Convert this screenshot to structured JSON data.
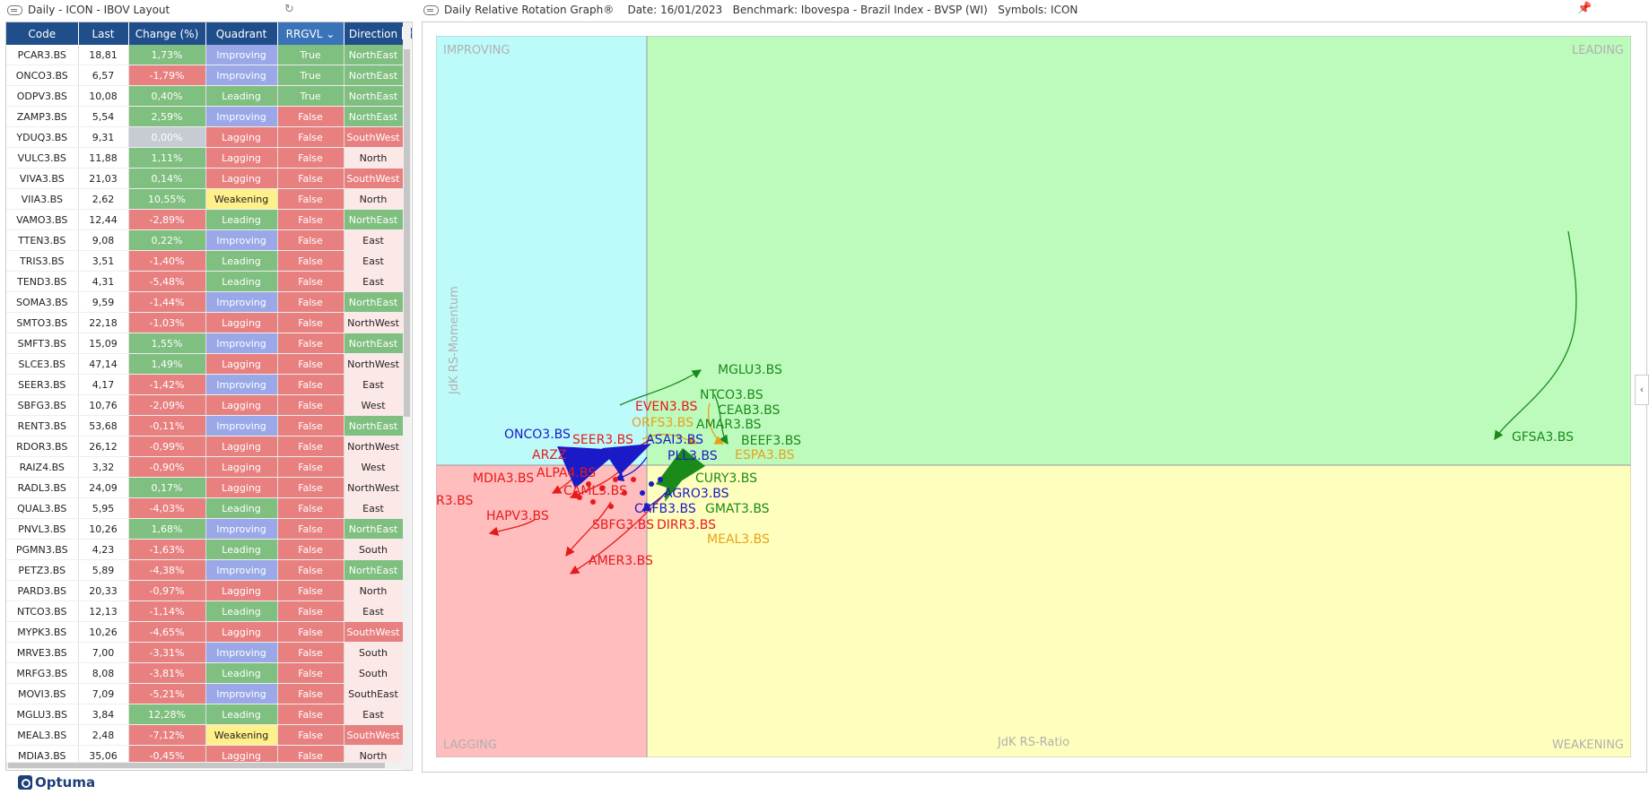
{
  "left_panel": {
    "title": "Daily - ICON - IBOV Layout"
  },
  "right_panel": {
    "title": "Daily Relative Rotation Graph®    Date: 16/01/2023   Benchmark: Ibovespa - Brazil Index - BVSP (WI)   Symbols: ICON"
  },
  "brand": {
    "name": "Optuma"
  },
  "colors": {
    "header": "#1f4e8a",
    "green": "#7fbf7f",
    "red": "#e88080",
    "gray": "#c7cbd3",
    "improving": "#9aa8e8",
    "leading": "#7fbf7f",
    "lagging": "#e88080",
    "weakening": "#fff08a",
    "pink_dir": "#fde8e8"
  },
  "table": {
    "columns": [
      "Code",
      "Last",
      "Change (%)",
      "Quadrant",
      "RRGVL",
      "Direction"
    ],
    "rows": [
      [
        "PCAR3.BS",
        "18,81",
        "1,73%",
        "Improving",
        "True",
        "NorthEast"
      ],
      [
        "ONCO3.BS",
        "6,57",
        "-1,79%",
        "Improving",
        "True",
        "NorthEast"
      ],
      [
        "ODPV3.BS",
        "10,08",
        "0,40%",
        "Leading",
        "True",
        "NorthEast"
      ],
      [
        "ZAMP3.BS",
        "5,54",
        "2,59%",
        "Improving",
        "False",
        "NorthEast"
      ],
      [
        "YDUQ3.BS",
        "9,31",
        "0,00%",
        "Lagging",
        "False",
        "SouthWest"
      ],
      [
        "VULC3.BS",
        "11,88",
        "1,11%",
        "Lagging",
        "False",
        "North"
      ],
      [
        "VIVA3.BS",
        "21,03",
        "0,14%",
        "Lagging",
        "False",
        "SouthWest"
      ],
      [
        "VIIA3.BS",
        "2,62",
        "10,55%",
        "Weakening",
        "False",
        "North"
      ],
      [
        "VAMO3.BS",
        "12,44",
        "-2,89%",
        "Leading",
        "False",
        "NorthEast"
      ],
      [
        "TTEN3.BS",
        "9,08",
        "0,22%",
        "Improving",
        "False",
        "East"
      ],
      [
        "TRIS3.BS",
        "3,51",
        "-1,40%",
        "Leading",
        "False",
        "East"
      ],
      [
        "TEND3.BS",
        "4,31",
        "-5,48%",
        "Leading",
        "False",
        "East"
      ],
      [
        "SOMA3.BS",
        "9,59",
        "-1,44%",
        "Improving",
        "False",
        "NorthEast"
      ],
      [
        "SMTO3.BS",
        "22,18",
        "-1,03%",
        "Lagging",
        "False",
        "NorthWest"
      ],
      [
        "SMFT3.BS",
        "15,09",
        "1,55%",
        "Improving",
        "False",
        "NorthEast"
      ],
      [
        "SLCE3.BS",
        "47,14",
        "1,49%",
        "Lagging",
        "False",
        "NorthWest"
      ],
      [
        "SEER3.BS",
        "4,17",
        "-1,42%",
        "Improving",
        "False",
        "East"
      ],
      [
        "SBFG3.BS",
        "10,76",
        "-2,09%",
        "Lagging",
        "False",
        "West"
      ],
      [
        "RENT3.BS",
        "53,68",
        "-0,11%",
        "Improving",
        "False",
        "NorthEast"
      ],
      [
        "RDOR3.BS",
        "26,12",
        "-0,99%",
        "Lagging",
        "False",
        "NorthWest"
      ],
      [
        "RAIZ4.BS",
        "3,32",
        "-0,90%",
        "Lagging",
        "False",
        "West"
      ],
      [
        "RADL3.BS",
        "24,09",
        "0,17%",
        "Lagging",
        "False",
        "NorthWest"
      ],
      [
        "QUAL3.BS",
        "5,95",
        "-4,03%",
        "Leading",
        "False",
        "East"
      ],
      [
        "PNVL3.BS",
        "10,26",
        "1,68%",
        "Improving",
        "False",
        "NorthEast"
      ],
      [
        "PGMN3.BS",
        "4,23",
        "-1,63%",
        "Leading",
        "False",
        "South"
      ],
      [
        "PETZ3.BS",
        "5,89",
        "-4,38%",
        "Improving",
        "False",
        "NorthEast"
      ],
      [
        "PARD3.BS",
        "20,33",
        "-0,97%",
        "Lagging",
        "False",
        "North"
      ],
      [
        "NTCO3.BS",
        "12,13",
        "-1,14%",
        "Leading",
        "False",
        "East"
      ],
      [
        "MYPK3.BS",
        "10,26",
        "-4,65%",
        "Lagging",
        "False",
        "SouthWest"
      ],
      [
        "MRVE3.BS",
        "7,00",
        "-3,31%",
        "Improving",
        "False",
        "South"
      ],
      [
        "MRFG3.BS",
        "8,08",
        "-3,81%",
        "Leading",
        "False",
        "South"
      ],
      [
        "MOVI3.BS",
        "7,09",
        "-5,21%",
        "Improving",
        "False",
        "SouthEast"
      ],
      [
        "MGLU3.BS",
        "3,84",
        "12,28%",
        "Leading",
        "False",
        "East"
      ],
      [
        "MEAL3.BS",
        "2,48",
        "-7,12%",
        "Weakening",
        "False",
        "SouthWest"
      ],
      [
        "MDIA3.BS",
        "35,06",
        "-0,45%",
        "Lagging",
        "False",
        "North"
      ]
    ]
  },
  "rrg": {
    "quadrants": {
      "improving": "IMPROVING",
      "leading": "LEADING",
      "lagging": "LAGGING",
      "weakening": "WEAKENING"
    },
    "x_axis_label": "JdK RS-Ratio",
    "y_axis_label": "JdK RS-Momentum",
    "symbol_labels": [
      {
        "text": "MGLU3.BS",
        "color": "#2e8b2e"
      },
      {
        "text": "NTCO3.BS",
        "color": "#2e8b2e"
      },
      {
        "text": "CEAB3.BS",
        "color": "#2e8b2e"
      },
      {
        "text": "EVEN3.BS",
        "color": "#e8191b"
      },
      {
        "text": "AMAR3.BS",
        "color": "#2e8b2e"
      },
      {
        "text": "BEEF3.BS",
        "color": "#2e8b2e"
      },
      {
        "text": "ONCO3.BS",
        "color": "#1a1ac8"
      },
      {
        "text": "ESPA3.BS",
        "color": "#e8a019"
      },
      {
        "text": "GFSA3.BS",
        "color": "#2e8b2e"
      },
      {
        "text": "CURY3.BS",
        "color": "#2e8b2e"
      },
      {
        "text": "MDIA3.BS",
        "color": "#e8191b"
      },
      {
        "text": "AGRO3.BS",
        "color": "#1a1ac8"
      },
      {
        "text": "GMAT3.BS",
        "color": "#2e8b2e"
      },
      {
        "text": "CRFB3.BS",
        "color": "#1a1ac8"
      },
      {
        "text": "HAPV3.BS",
        "color": "#e8191b"
      },
      {
        "text": "SBFG3.BS",
        "color": "#e8191b"
      },
      {
        "text": "DIRR3.BS",
        "color": "#e8191b"
      },
      {
        "text": "MEAL3.BS",
        "color": "#e8a019"
      },
      {
        "text": "AMER3.BS",
        "color": "#e8191b"
      },
      {
        "text": "R3.BS",
        "color": "#e8191b"
      },
      {
        "text": "SEER3.BS",
        "color": "#e8191b"
      },
      {
        "text": "ARZZ",
        "color": "#e8191b"
      },
      {
        "text": "ALPA4.BS",
        "color": "#e8191b"
      },
      {
        "text": "CAML3.BS",
        "color": "#e8191b"
      },
      {
        "text": "ASAI3.BS",
        "color": "#1a1ac8"
      },
      {
        "text": "ORFS3.BS",
        "color": "#e8a019"
      },
      {
        "text": "PLL3.BS",
        "color": "#1a1ac8"
      }
    ]
  }
}
